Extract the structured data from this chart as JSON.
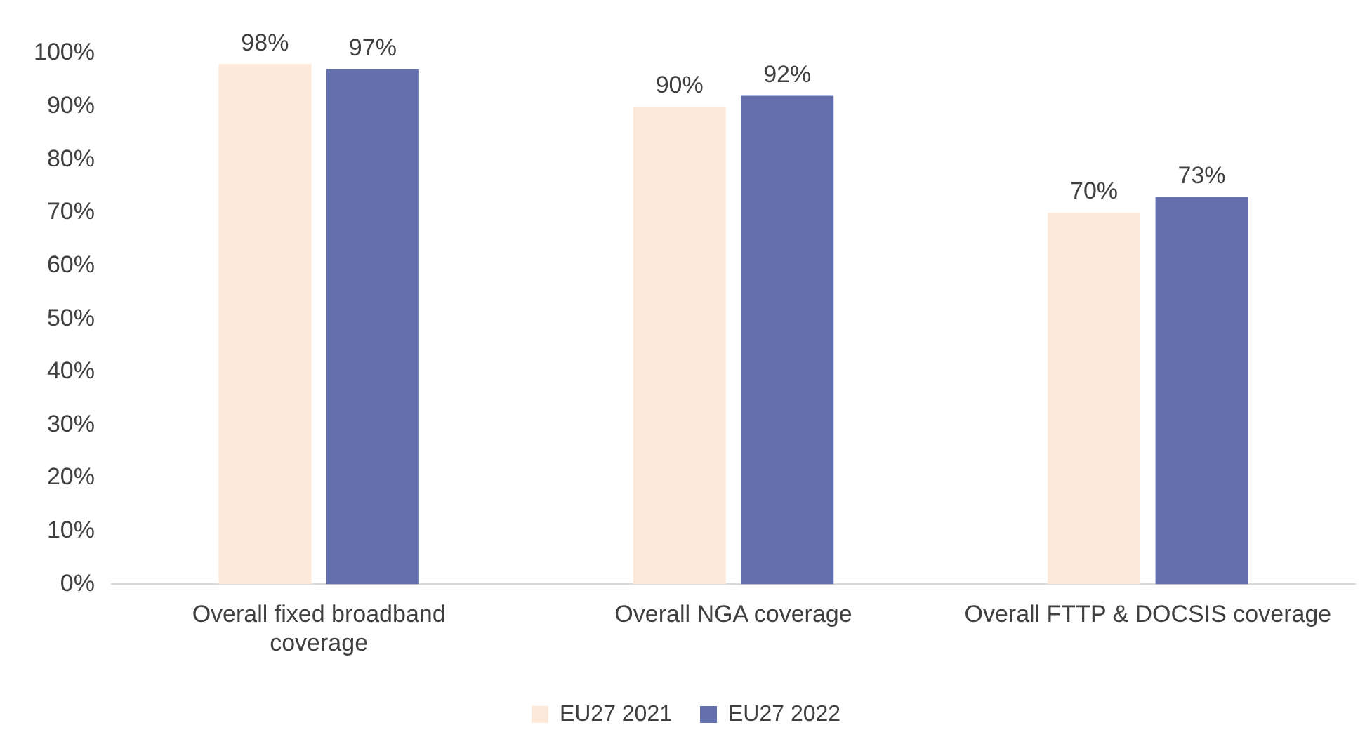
{
  "chart_data": {
    "type": "bar",
    "categories": [
      "Overall fixed broadband coverage",
      "Overall NGA coverage",
      "Overall FTTP & DOCSIS coverage"
    ],
    "series": [
      {
        "name": "EU27 2021",
        "color": "#fde9d9",
        "values": [
          98,
          90,
          70
        ],
        "value_labels": [
          "98%",
          "90%",
          "70%"
        ]
      },
      {
        "name": "EU27 2022",
        "color": "#6470ad",
        "values": [
          97,
          92,
          73
        ],
        "value_labels": [
          "97%",
          "92%",
          "73%"
        ]
      }
    ],
    "ylim": [
      0,
      100
    ],
    "yticks": [
      {
        "value": 0,
        "label": "0%"
      },
      {
        "value": 10,
        "label": "10%"
      },
      {
        "value": 20,
        "label": "20%"
      },
      {
        "value": 30,
        "label": "30%"
      },
      {
        "value": 40,
        "label": "40%"
      },
      {
        "value": 50,
        "label": "50%"
      },
      {
        "value": 60,
        "label": "60%"
      },
      {
        "value": 70,
        "label": "70%"
      },
      {
        "value": 80,
        "label": "80%"
      },
      {
        "value": 90,
        "label": "90%"
      },
      {
        "value": 100,
        "label": "100%"
      }
    ],
    "grid": false,
    "legend": "bottom"
  }
}
